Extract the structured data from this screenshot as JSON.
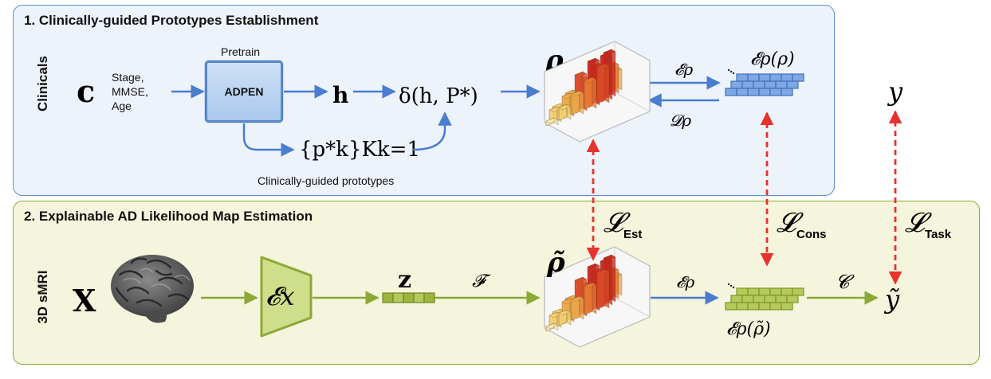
{
  "panel1": {
    "title": "1. Clinically-guided Prototypes Establishment",
    "row_label": "Clinicals",
    "clinical_vars": [
      "Stage,",
      "MMSE,",
      "Age"
    ],
    "pretrain_label": "Pretrain",
    "encoder_name": "ADPEN",
    "prototypes_caption": "Clinically-guided prototypes",
    "symbols": {
      "c": "c",
      "h": "h",
      "delta": "δ(h, P*)",
      "prototype_set": "{p*k}Kk=1",
      "rho": "ρ",
      "enc": "𝓔ρ",
      "dec": "𝓓ρ",
      "enc_rho": "𝓔ρ(ρ)",
      "y": "y"
    }
  },
  "panel2": {
    "title": "2. Explainable AD Likelihood Map Estimation",
    "row_label": "3D sMRI",
    "symbols": {
      "x": "X",
      "enc_x": "𝓔x",
      "z": "z",
      "F": "𝓕",
      "rho_tilde": "ρ̃",
      "enc": "𝓔ρ",
      "enc_rho_tilde": "𝓔ρ(ρ̃)",
      "C": "𝓒",
      "y_tilde": "ỹ"
    }
  },
  "losses": {
    "est": "Est",
    "cons": "Cons",
    "task": "Task",
    "symbol": "𝓛"
  },
  "colors": {
    "blue": "#4a7cd0",
    "green": "#8da836",
    "red_dashed": "#e8322d"
  }
}
